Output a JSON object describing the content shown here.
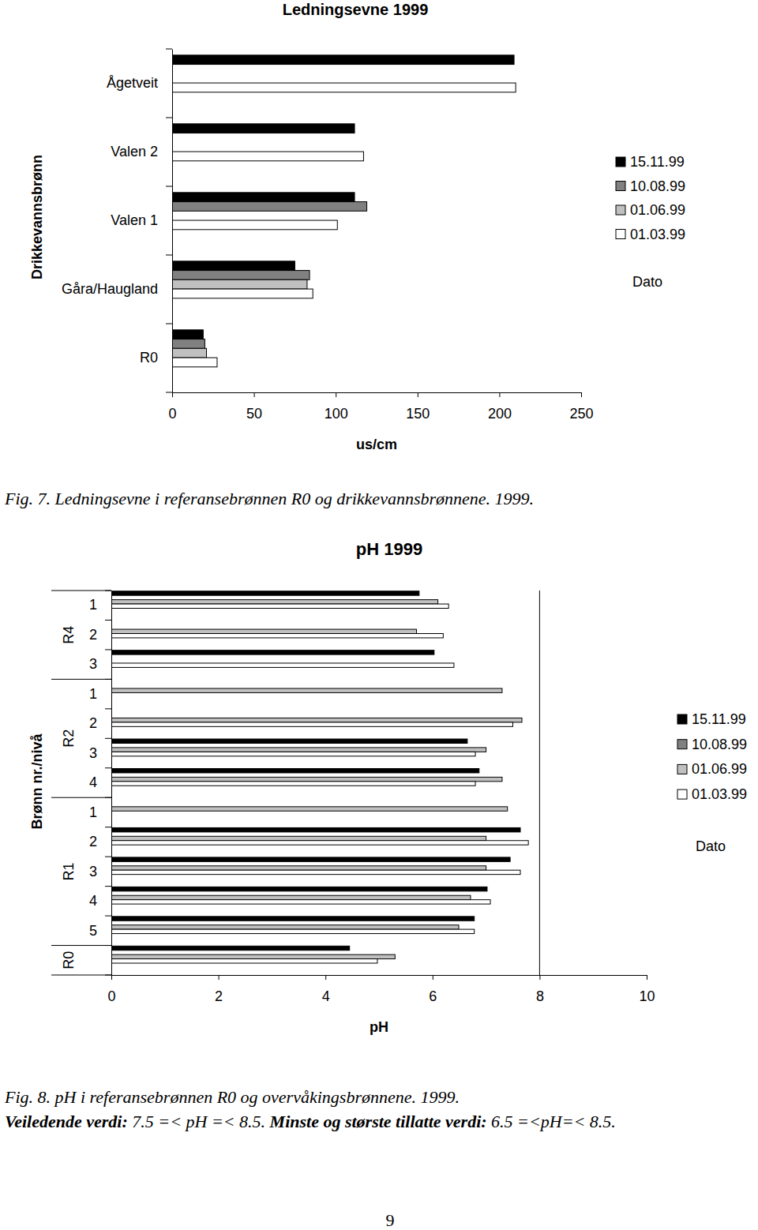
{
  "chart_data": [
    {
      "type": "bar",
      "orientation": "horizontal",
      "title": "Ledningsevne 1999",
      "xlabel": "us/cm",
      "ylabel": "Drikkevannsbrønn",
      "categories": [
        "Ågetveit",
        "Valen 2",
        "Valen 1",
        "Gåra/Haugland",
        "R0"
      ],
      "series": [
        {
          "name": "15.11.99",
          "color": "#000000",
          "values": [
            209,
            111.5,
            111.5,
            75,
            19
          ]
        },
        {
          "name": "10.08.99",
          "color": "#808080",
          "values": [
            null,
            null,
            119,
            84,
            20
          ]
        },
        {
          "name": "01.06.99",
          "color": "#c0c0c0",
          "values": [
            null,
            null,
            null,
            82.5,
            21
          ]
        },
        {
          "name": "01.03.99",
          "color": "#ffffff",
          "values": [
            210,
            117,
            101,
            86,
            27.5
          ]
        }
      ],
      "xlim": [
        0,
        250
      ],
      "xticks": [
        0,
        50,
        100,
        150,
        200,
        250
      ],
      "legend": "right",
      "legend_title": "Dato"
    },
    {
      "type": "bar",
      "orientation": "horizontal",
      "title": "pH 1999",
      "xlabel": "pH",
      "ylabel": "Brønn nr./nivå",
      "categories": [
        "1",
        "2",
        "3",
        "1",
        "2",
        "3",
        "4",
        "1",
        "2",
        "3",
        "4",
        "5",
        null
      ],
      "groups": [
        {
          "label": "R4",
          "count": 3
        },
        {
          "label": "R2",
          "count": 4
        },
        {
          "label": "R1",
          "count": 5
        },
        {
          "label": "R0",
          "count": 1
        }
      ],
      "series": [
        {
          "name": "15.11.99",
          "color": "#000000",
          "values": [
            5.75,
            null,
            6.03,
            null,
            null,
            6.65,
            6.87,
            null,
            7.64,
            7.45,
            7.02,
            6.78,
            4.45
          ]
        },
        {
          "name": "10.08.99",
          "color": "#808080",
          "values": [
            null,
            null,
            null,
            null,
            null,
            null,
            null,
            null,
            null,
            null,
            null,
            null,
            null
          ]
        },
        {
          "name": "01.06.99",
          "color": "#c0c0c0",
          "values": [
            6.1,
            5.7,
            null,
            7.3,
            7.67,
            7.0,
            7.3,
            7.4,
            7.0,
            7.0,
            6.71,
            6.49,
            5.3
          ]
        },
        {
          "name": "01.03.99",
          "color": "#ffffff",
          "values": [
            6.3,
            6.2,
            6.4,
            null,
            7.5,
            6.8,
            6.8,
            null,
            7.79,
            7.64,
            7.08,
            6.78,
            4.97
          ]
        }
      ],
      "xlim": [
        0,
        10
      ],
      "xticks": [
        0,
        2,
        4,
        6,
        8,
        10
      ],
      "reference_lines": [
        8
      ],
      "legend": "right",
      "legend_title": "Dato"
    }
  ],
  "captions": [
    "Fig. 7. Ledningsevne i referansebrønnen R0 og drikkevannsbrønnene. 1999.",
    "Fig. 8. pH i referansebrønnen R0 og overvåkingsbrønnene. 1999."
  ],
  "notes": [
    {
      "text": "Veiledende verdi:",
      "bold": true
    },
    {
      "text": " 7.5 =< pH =< 8.5. ",
      "bold": false
    },
    {
      "text": "Minste og største tillatte verdi:",
      "bold": true
    },
    {
      "text": " 6.5 =<pH=< 8.5.",
      "bold": false
    }
  ],
  "page_number": 9
}
